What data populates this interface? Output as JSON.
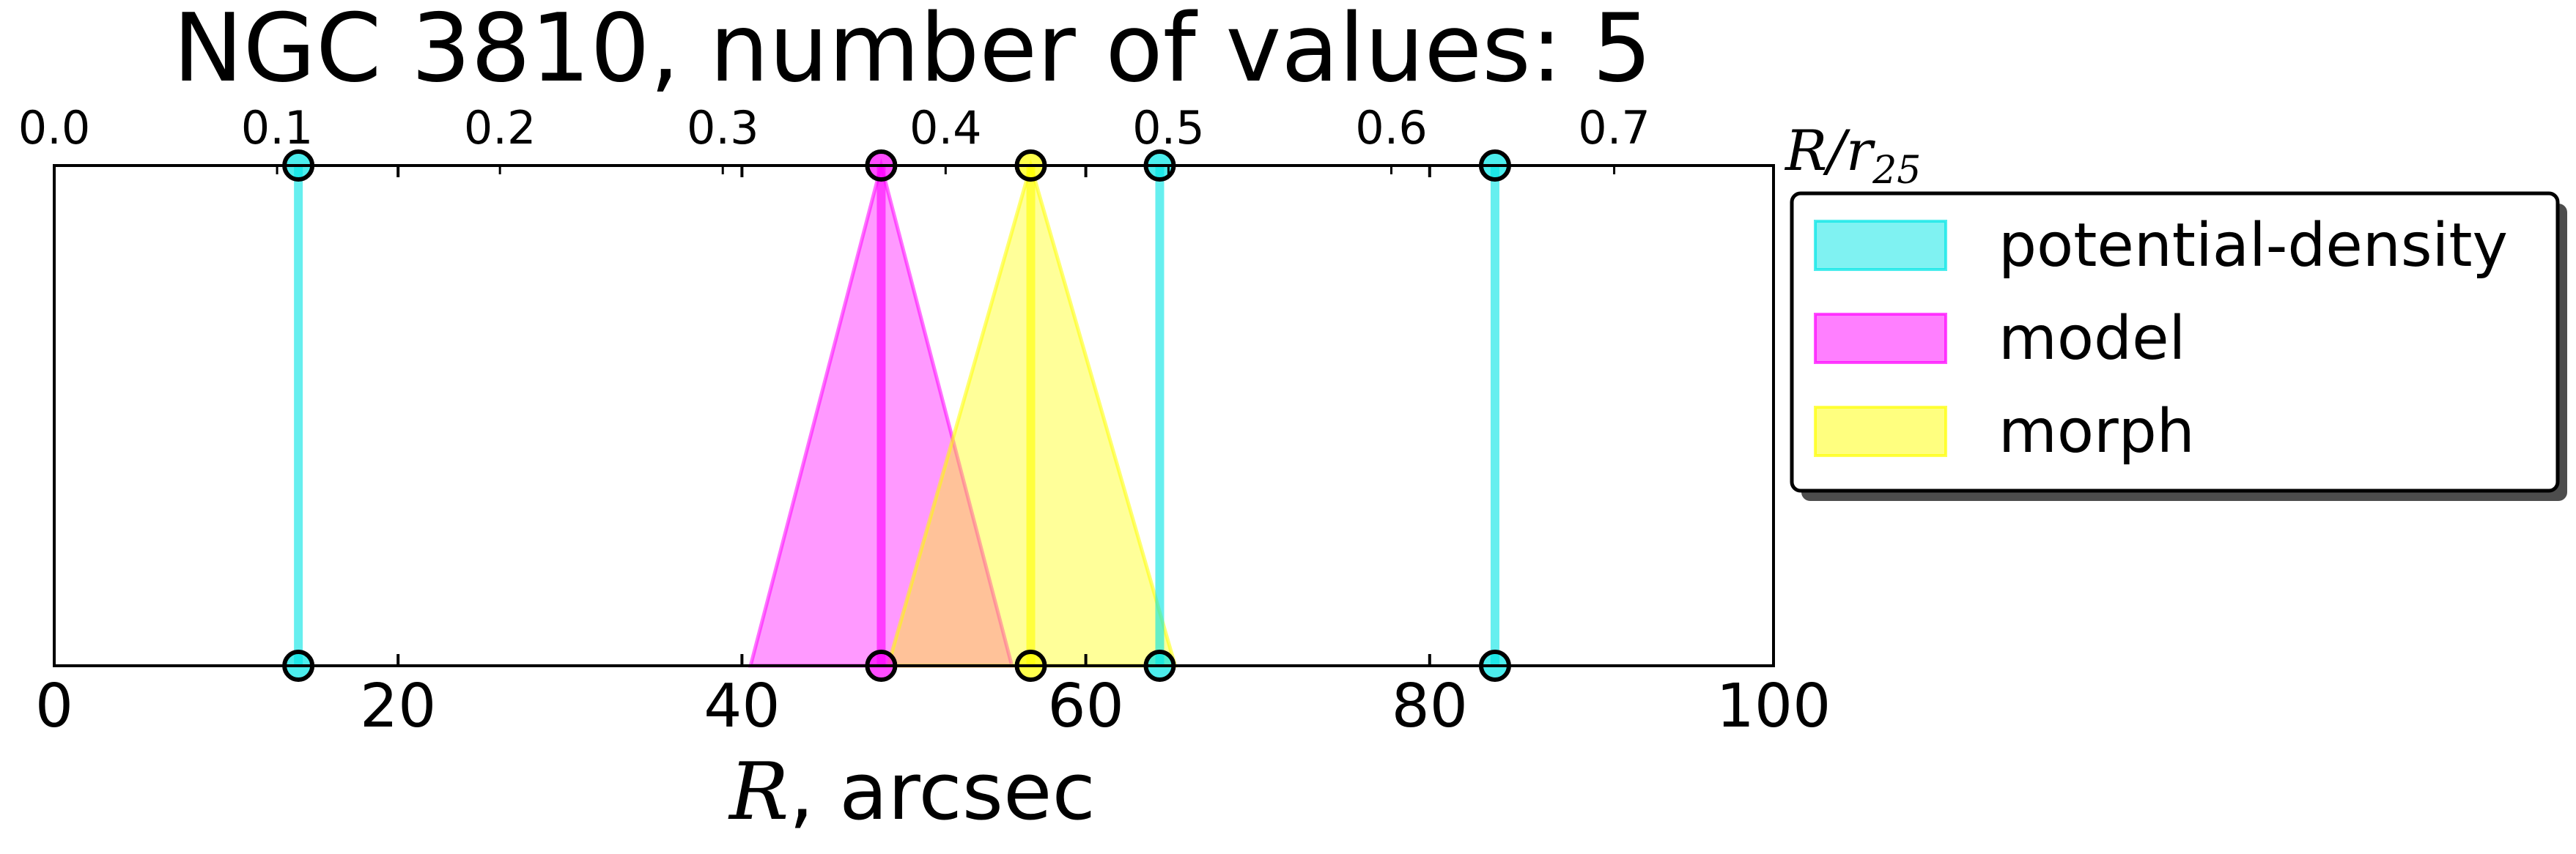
{
  "chart_data": {
    "type": "line",
    "title": "NGC 3810, number of values: 5",
    "xlabel_var": "R",
    "xlabel_unit": ", arcsec",
    "top_axis_label_main": "R/r",
    "top_axis_label_sub": "25",
    "xlim": [
      0,
      100
    ],
    "x_ticks": [
      "0",
      "20",
      "40",
      "60",
      "80",
      "100"
    ],
    "top_xlim": [
      0,
      0.7715
    ],
    "top_ticks": [
      "0.0",
      "0.1",
      "0.2",
      "0.3",
      "0.4",
      "0.5",
      "0.6",
      "0.7"
    ],
    "grid": false,
    "legend_position": "right",
    "series": [
      {
        "name": "potential-density",
        "kind": "vertical-lines",
        "color": "#00e5e5",
        "x": [
          14.2,
          64.3,
          83.8
        ]
      },
      {
        "name": "model",
        "kind": "triangle",
        "color": "#ff00ff",
        "center": 48.1,
        "range": [
          40.5,
          55.7
        ]
      },
      {
        "name": "morph",
        "kind": "triangle",
        "color": "#ffff00",
        "center": 56.8,
        "range": [
          48.5,
          65.2
        ]
      }
    ]
  }
}
